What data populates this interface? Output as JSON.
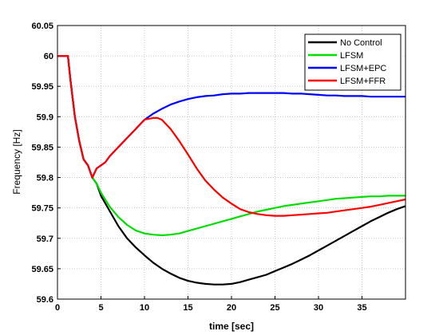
{
  "chart_data": {
    "type": "line",
    "title": "",
    "xlabel": "time [sec]",
    "ylabel": "Frequency [Hz]",
    "xlim": [
      0,
      40
    ],
    "ylim": [
      59.6,
      60.05
    ],
    "xticks": [
      0,
      5,
      10,
      15,
      20,
      25,
      30,
      35
    ],
    "xtick_labels": [
      "0",
      "5",
      "10",
      "15",
      "20",
      "25",
      "30",
      "35"
    ],
    "yticks": [
      59.6,
      59.65,
      59.7,
      59.75,
      59.8,
      59.85,
      59.9,
      59.95,
      60,
      60.05
    ],
    "ytick_labels": [
      "59.6",
      "59.65",
      "59.7",
      "59.75",
      "59.8",
      "59.85",
      "59.9",
      "59.95",
      "60",
      "60.05"
    ],
    "grid": true,
    "legend_position": "top-right",
    "series": [
      {
        "name": "No Control",
        "color": "#000000",
        "x": [
          0,
          1,
          1.2,
          1.5,
          2,
          2.5,
          3,
          3.5,
          4,
          4.5,
          5,
          6,
          7,
          8,
          9,
          10,
          11,
          12,
          13,
          14,
          15,
          16,
          17,
          18,
          19,
          20,
          21,
          22,
          23,
          24,
          25,
          26,
          27,
          28,
          29,
          30,
          31,
          32,
          33,
          34,
          35,
          36,
          37,
          38,
          39,
          40
        ],
        "y": [
          60.0,
          60.0,
          60.0,
          59.96,
          59.9,
          59.86,
          59.83,
          59.82,
          59.8,
          59.79,
          59.77,
          59.745,
          59.72,
          59.7,
          59.685,
          59.672,
          59.66,
          59.65,
          59.642,
          59.635,
          59.63,
          59.627,
          59.625,
          59.624,
          59.624,
          59.625,
          59.628,
          59.632,
          59.636,
          59.64,
          59.646,
          59.652,
          59.658,
          59.665,
          59.672,
          59.68,
          59.688,
          59.696,
          59.704,
          59.712,
          59.72,
          59.728,
          59.735,
          59.742,
          59.748,
          59.753
        ]
      },
      {
        "name": "LFSM",
        "color": "#00dd00",
        "x": [
          0,
          1,
          1.2,
          1.5,
          2,
          2.5,
          3,
          3.5,
          4,
          4.5,
          5,
          6,
          7,
          8,
          9,
          10,
          11,
          12,
          13,
          14,
          15,
          16,
          17,
          18,
          19,
          20,
          21,
          22,
          23,
          24,
          25,
          26,
          27,
          28,
          29,
          30,
          31,
          32,
          33,
          34,
          35,
          36,
          37,
          38,
          39,
          40
        ],
        "y": [
          60.0,
          60.0,
          60.0,
          59.96,
          59.9,
          59.86,
          59.83,
          59.82,
          59.8,
          59.79,
          59.775,
          59.752,
          59.735,
          59.722,
          59.713,
          59.708,
          59.706,
          59.705,
          59.706,
          59.708,
          59.712,
          59.716,
          59.72,
          59.724,
          59.728,
          59.732,
          59.736,
          59.74,
          59.744,
          59.747,
          59.75,
          59.753,
          59.755,
          59.757,
          59.759,
          59.761,
          59.763,
          59.765,
          59.766,
          59.767,
          59.768,
          59.769,
          59.769,
          59.77,
          59.77,
          59.77
        ]
      },
      {
        "name": "LFSM+EPC",
        "color": "#0000ff",
        "x": [
          0,
          1,
          1.2,
          1.5,
          2,
          2.5,
          3,
          3.5,
          4,
          4.5,
          5,
          5.5,
          6,
          7,
          8,
          9,
          10,
          11,
          12,
          13,
          14,
          15,
          16,
          17,
          18,
          19,
          20,
          21,
          22,
          23,
          24,
          25,
          26,
          27,
          28,
          29,
          30,
          31,
          32,
          33,
          34,
          35,
          36,
          37,
          38,
          39,
          40
        ],
        "y": [
          60.0,
          60.0,
          60.0,
          59.96,
          59.9,
          59.86,
          59.83,
          59.82,
          59.8,
          59.815,
          59.82,
          59.825,
          59.835,
          59.85,
          59.865,
          59.88,
          59.895,
          59.905,
          59.913,
          59.92,
          59.925,
          59.929,
          59.932,
          59.934,
          59.935,
          59.937,
          59.938,
          59.938,
          59.939,
          59.939,
          59.939,
          59.939,
          59.939,
          59.938,
          59.938,
          59.937,
          59.936,
          59.935,
          59.935,
          59.934,
          59.934,
          59.934,
          59.933,
          59.933,
          59.933,
          59.933,
          59.933
        ]
      },
      {
        "name": "LFSM+FFR",
        "color": "#ff0000",
        "x": [
          0,
          1,
          1.2,
          1.5,
          2,
          2.5,
          3,
          3.5,
          4,
          4.5,
          5,
          5.5,
          6,
          7,
          8,
          9,
          10,
          11,
          11.5,
          12,
          13,
          14,
          15,
          16,
          17,
          18,
          19,
          20,
          21,
          22,
          23,
          24,
          25,
          26,
          27,
          28,
          29,
          30,
          31,
          32,
          33,
          34,
          35,
          36,
          37,
          38,
          39,
          40
        ],
        "y": [
          60.0,
          60.0,
          60.0,
          59.96,
          59.9,
          59.86,
          59.83,
          59.82,
          59.8,
          59.815,
          59.82,
          59.825,
          59.835,
          59.85,
          59.865,
          59.88,
          59.895,
          59.898,
          59.898,
          59.895,
          59.88,
          59.86,
          59.838,
          59.815,
          59.795,
          59.78,
          59.767,
          59.757,
          59.748,
          59.743,
          59.74,
          59.738,
          59.737,
          59.737,
          59.738,
          59.739,
          59.74,
          59.741,
          59.742,
          59.744,
          59.746,
          59.748,
          59.75,
          59.752,
          59.755,
          59.758,
          59.761,
          59.764
        ]
      }
    ]
  }
}
